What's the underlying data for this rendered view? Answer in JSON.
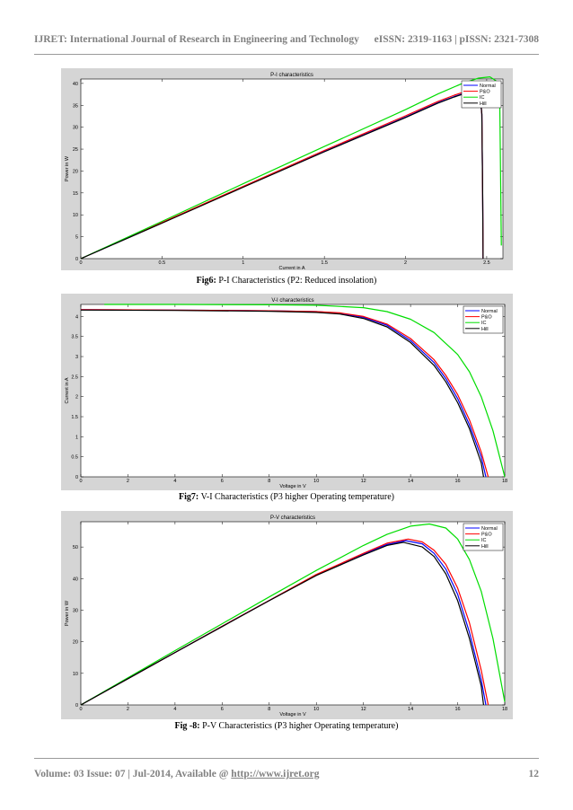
{
  "header": {
    "journal": "IJRET: International Journal of Research in Engineering and Technology",
    "issn": "eISSN: 2319-1163 | pISSN: 2321-7308"
  },
  "figures": [
    {
      "label": "Fig6:",
      "caption": "P-I Characteristics (P2: Reduced insolation)"
    },
    {
      "label": "Fig7:",
      "caption": "V-I Characteristics (P3 higher Operating temperature)"
    },
    {
      "label": "Fig -8:",
      "caption": "P-V Characteristics (P3 higher Operating temperature)"
    }
  ],
  "footer": {
    "volume": "Volume: 03 Issue: 07 | Jul-2014, Available @ ",
    "url": "http://www.ijret.org",
    "page": "12"
  },
  "chart_data": [
    {
      "type": "line",
      "title": "P-I characteristics",
      "xlabel": "Current in A",
      "ylabel": "Power in W",
      "xlim": [
        0,
        2.6
      ],
      "ylim": [
        0,
        41
      ],
      "xticks": [
        0,
        0.5,
        1,
        1.5,
        2,
        2.5
      ],
      "yticks": [
        0,
        5,
        10,
        15,
        20,
        25,
        30,
        35,
        40
      ],
      "grid": false,
      "legend_position": "top-right",
      "series": [
        {
          "name": "Normal",
          "color": "#0000ff",
          "x": [
            0,
            0.5,
            1.0,
            1.5,
            2.0,
            2.2,
            2.3,
            2.35,
            2.4,
            2.44,
            2.46,
            2.47,
            2.475,
            2.478
          ],
          "y": [
            0,
            8.2,
            16.4,
            24.5,
            32.3,
            35.6,
            37.0,
            37.6,
            37.9,
            37.9,
            37.0,
            33.0,
            15.0,
            0
          ]
        },
        {
          "name": "P&O",
          "color": "#ff0000",
          "x": [
            0,
            0.5,
            1.0,
            1.5,
            2.0,
            2.2,
            2.3,
            2.35,
            2.4,
            2.44,
            2.46,
            2.47,
            2.475,
            2.478
          ],
          "y": [
            0,
            8.25,
            16.5,
            24.7,
            32.6,
            35.9,
            37.3,
            37.9,
            38.2,
            38.2,
            37.3,
            33.0,
            15.0,
            0
          ]
        },
        {
          "name": "IC",
          "color": "#00dd00",
          "x": [
            0,
            0.5,
            1.0,
            1.5,
            2.0,
            2.2,
            2.35,
            2.45,
            2.52,
            2.56,
            2.58,
            2.585,
            2.59
          ],
          "y": [
            0,
            8.5,
            17.1,
            25.6,
            34.0,
            37.6,
            40.0,
            41.2,
            41.5,
            40.5,
            37.0,
            20.0,
            3.0
          ]
        },
        {
          "name": "Hill",
          "color": "#000000",
          "x": [
            0,
            0.5,
            1.0,
            1.5,
            2.0,
            2.2,
            2.3,
            2.35,
            2.4,
            2.44,
            2.46,
            2.47,
            2.475,
            2.478
          ],
          "y": [
            0,
            8.1,
            16.3,
            24.4,
            32.2,
            35.5,
            36.9,
            37.5,
            37.8,
            37.8,
            36.9,
            33.0,
            15.0,
            0
          ]
        }
      ]
    },
    {
      "type": "line",
      "title": "V-I characteristics",
      "xlabel": "Voltage in V",
      "ylabel": "Current in A",
      "xlim": [
        0,
        18
      ],
      "ylim": [
        0,
        4.3
      ],
      "xticks": [
        0,
        2,
        4,
        6,
        8,
        10,
        12,
        14,
        16,
        18
      ],
      "yticks": [
        0,
        0.5,
        1,
        1.5,
        2,
        2.5,
        3,
        3.5,
        4
      ],
      "grid": false,
      "legend_position": "top-right",
      "series": [
        {
          "name": "Normal",
          "color": "#0000ff",
          "x": [
            0,
            4,
            8,
            10,
            11,
            12,
            13,
            14,
            15,
            15.5,
            16,
            16.5,
            17,
            17.2
          ],
          "y": [
            4.17,
            4.16,
            4.14,
            4.12,
            4.08,
            3.98,
            3.78,
            3.4,
            2.85,
            2.45,
            1.95,
            1.3,
            0.5,
            0
          ]
        },
        {
          "name": "P&O",
          "color": "#ff0000",
          "x": [
            0,
            4,
            8,
            10,
            11,
            12,
            13,
            14,
            15,
            15.5,
            16,
            16.5,
            17,
            17.3
          ],
          "y": [
            4.17,
            4.16,
            4.14,
            4.12,
            4.09,
            4.0,
            3.81,
            3.45,
            2.92,
            2.53,
            2.05,
            1.42,
            0.62,
            0
          ]
        },
        {
          "name": "IC",
          "color": "#00dd00",
          "x": [
            1,
            4,
            8,
            10,
            12,
            13,
            14,
            15,
            16,
            16.5,
            17,
            17.5,
            18
          ],
          "y": [
            4.3,
            4.3,
            4.29,
            4.28,
            4.22,
            4.12,
            3.93,
            3.6,
            3.05,
            2.62,
            2.0,
            1.15,
            0
          ]
        },
        {
          "name": "Hill",
          "color": "#000000",
          "x": [
            0,
            4,
            8,
            10,
            11,
            12,
            13,
            14,
            15,
            15.5,
            16,
            16.5,
            17,
            17.1
          ],
          "y": [
            4.16,
            4.15,
            4.13,
            4.1,
            4.06,
            3.95,
            3.74,
            3.35,
            2.78,
            2.37,
            1.85,
            1.2,
            0.35,
            0
          ]
        }
      ]
    },
    {
      "type": "line",
      "title": "P-V characteristics",
      "xlabel": "Voltage in V",
      "ylabel": "Power in W",
      "xlim": [
        0,
        18
      ],
      "ylim": [
        0,
        58
      ],
      "xticks": [
        0,
        2,
        4,
        6,
        8,
        10,
        12,
        14,
        16,
        18
      ],
      "yticks": [
        0,
        10,
        20,
        30,
        40,
        50
      ],
      "grid": false,
      "legend_position": "top-right",
      "series": [
        {
          "name": "Normal",
          "color": "#0000ff",
          "x": [
            0,
            2,
            4,
            6,
            8,
            10,
            12,
            13,
            13.8,
            14.5,
            15,
            15.5,
            16,
            16.5,
            17,
            17.2
          ],
          "y": [
            0,
            8.3,
            16.6,
            24.9,
            33.1,
            41.2,
            47.8,
            50.8,
            52.0,
            51.0,
            48.0,
            43.0,
            35.0,
            23.0,
            8.0,
            0
          ]
        },
        {
          "name": "P&O",
          "color": "#ff0000",
          "x": [
            0,
            2,
            4,
            6,
            8,
            10,
            12,
            13,
            13.9,
            14.5,
            15,
            15.5,
            16,
            16.5,
            17,
            17.3
          ],
          "y": [
            0,
            8.3,
            16.6,
            24.9,
            33.1,
            41.3,
            48.0,
            51.2,
            52.5,
            51.6,
            49.0,
            44.5,
            37.0,
            26.0,
            11.0,
            0
          ]
        },
        {
          "name": "IC",
          "color": "#00dd00",
          "x": [
            0,
            2,
            4,
            6,
            8,
            10,
            12,
            13,
            14,
            14.8,
            15.5,
            16,
            16.5,
            17,
            17.5,
            18
          ],
          "y": [
            0,
            8.6,
            17.2,
            25.7,
            34.2,
            42.6,
            50.5,
            54.0,
            56.6,
            57.3,
            56.0,
            52.5,
            46.0,
            36.0,
            21.0,
            1.0
          ]
        },
        {
          "name": "Hill",
          "color": "#000000",
          "x": [
            0,
            2,
            4,
            6,
            8,
            10,
            12,
            13,
            13.7,
            14.5,
            15,
            15.5,
            16,
            16.5,
            17,
            17.1
          ],
          "y": [
            0,
            8.3,
            16.6,
            24.8,
            33.0,
            41.0,
            47.5,
            50.5,
            51.5,
            50.0,
            47.0,
            41.5,
            33.0,
            21.0,
            6.0,
            0
          ]
        }
      ]
    }
  ]
}
